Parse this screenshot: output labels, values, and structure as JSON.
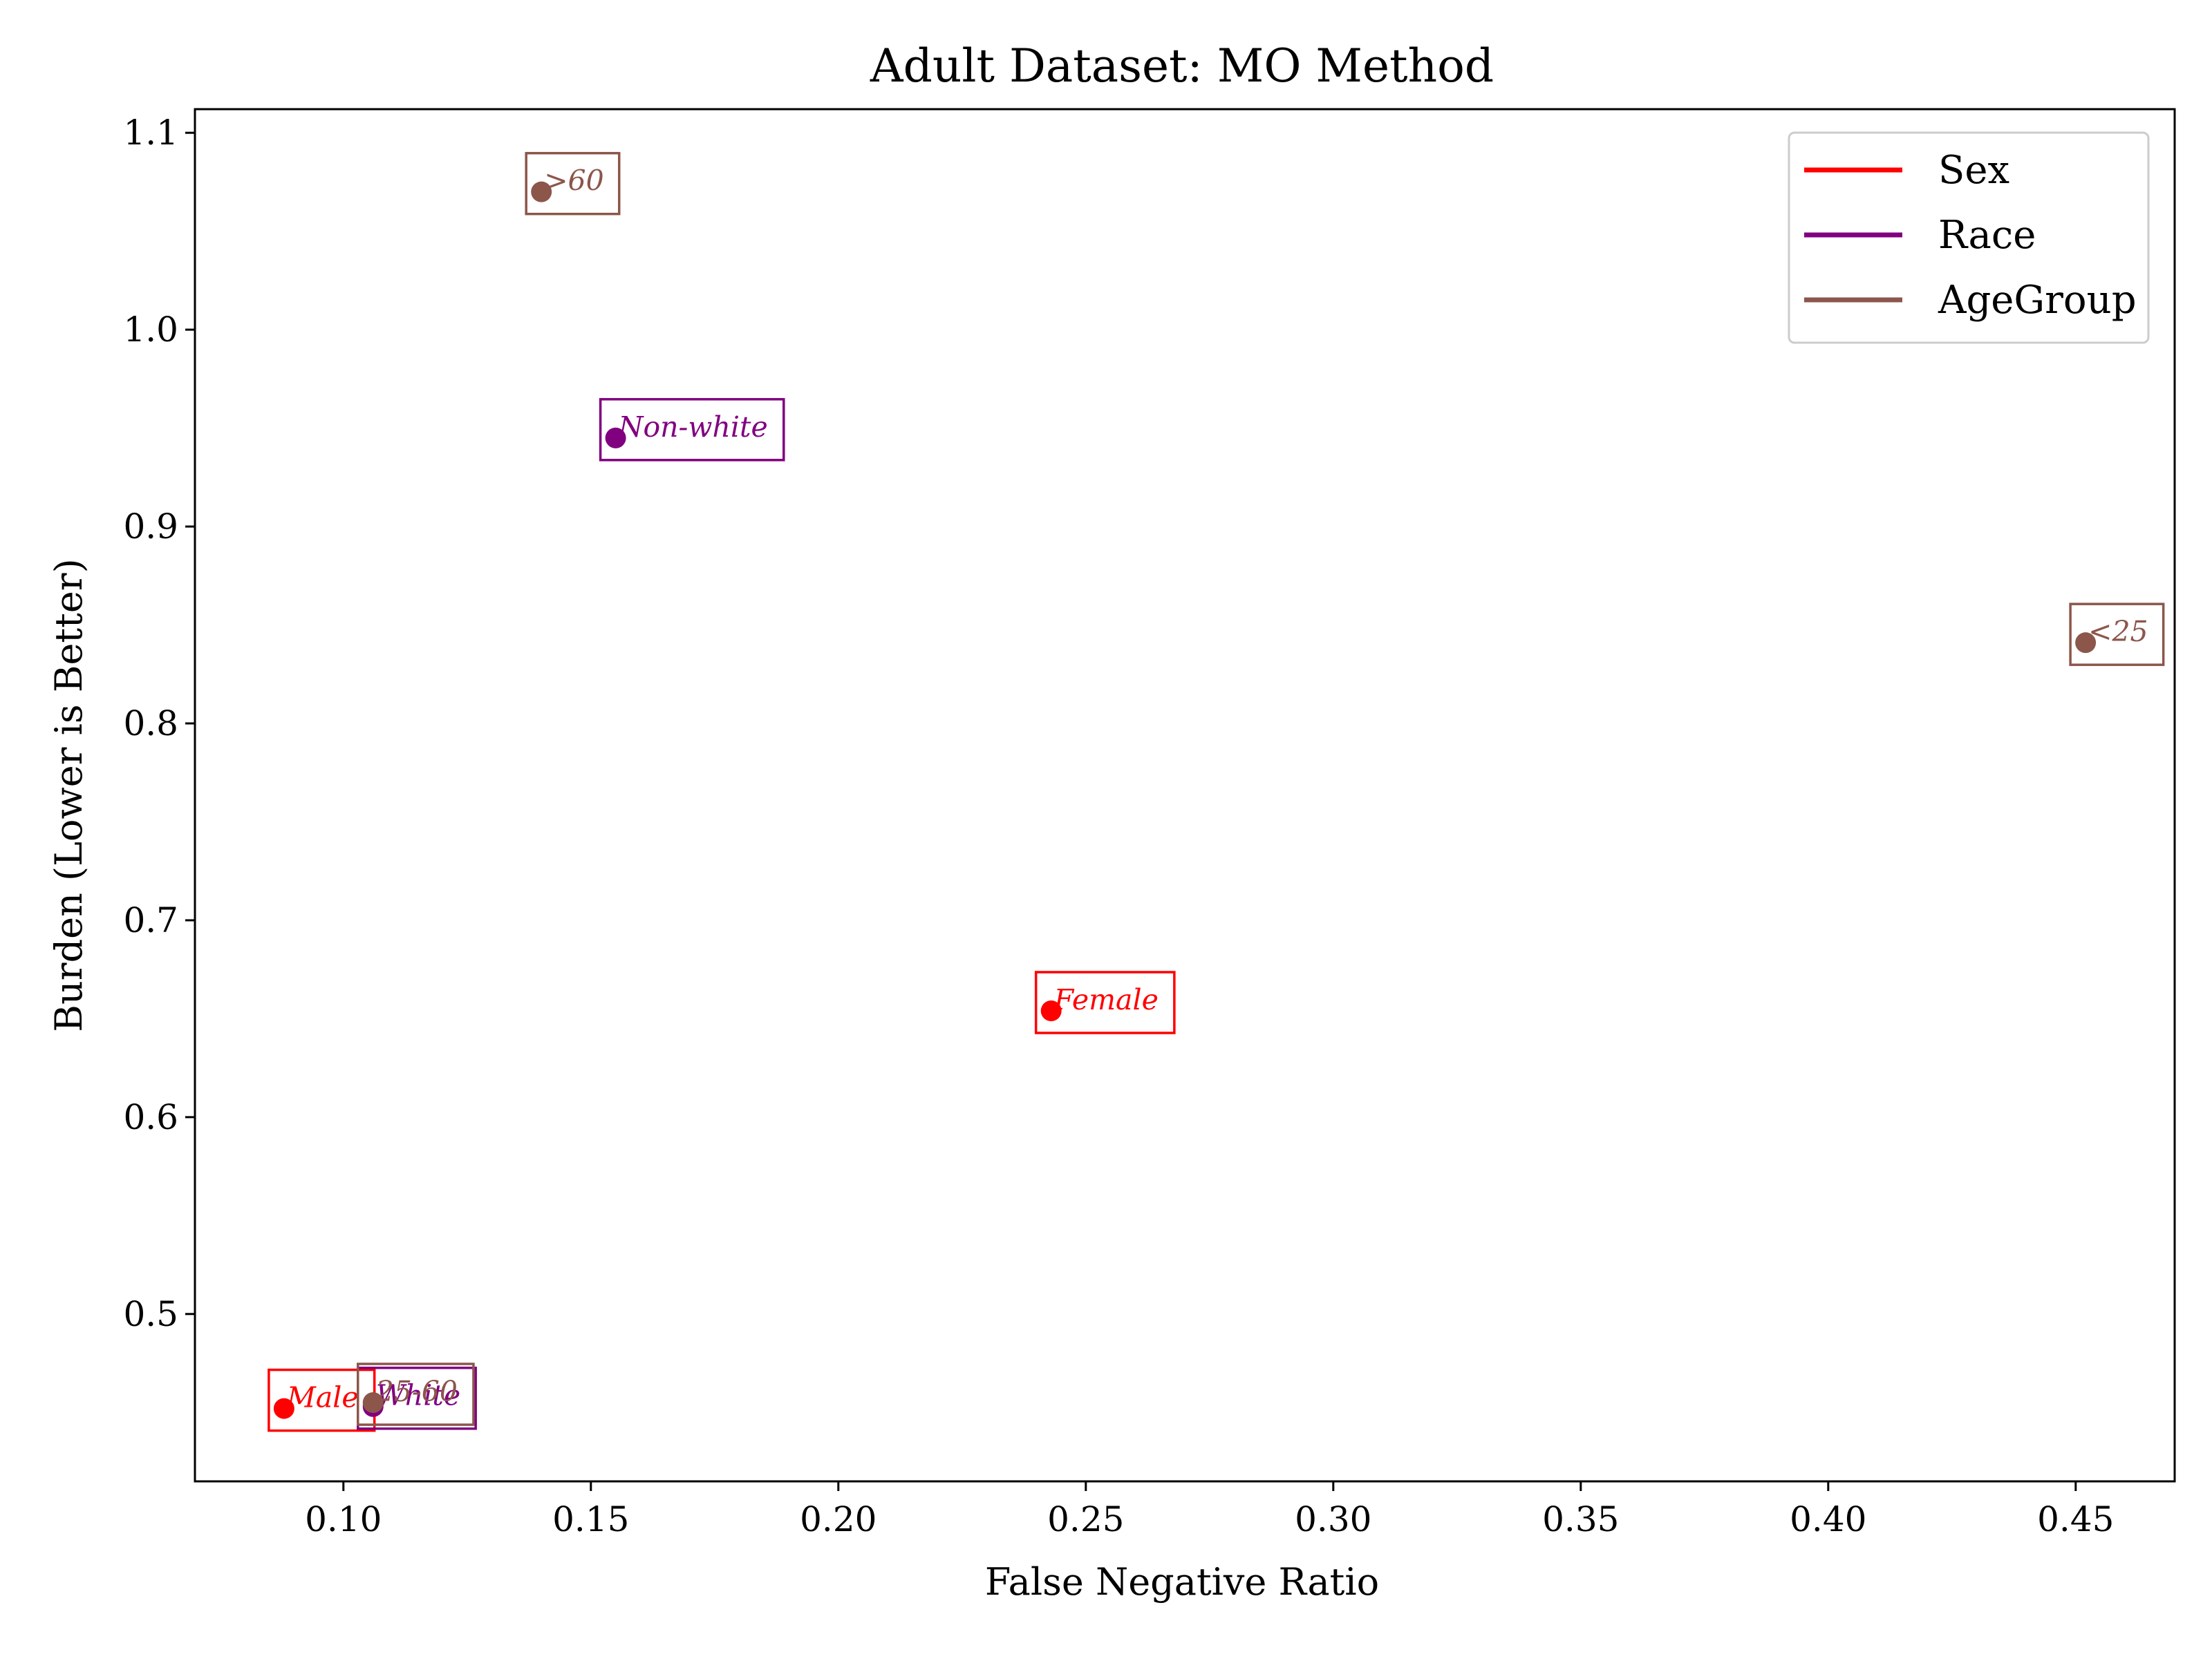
{
  "chart_data": {
    "type": "scatter",
    "title": "Adult Dataset: MO Method",
    "xlabel": "False Negative Ratio",
    "ylabel": "Burden (Lower is Better)",
    "xlim": [
      0.07,
      0.47
    ],
    "ylim": [
      0.415,
      1.112
    ],
    "xticks": [
      "0.10",
      "0.15",
      "0.20",
      "0.25",
      "0.30",
      "0.35",
      "0.40",
      "0.45"
    ],
    "yticks": [
      "0.5",
      "0.6",
      "0.7",
      "0.8",
      "0.9",
      "1.0",
      "1.1"
    ],
    "grid": false,
    "legend_position": "top-right",
    "series": [
      {
        "name": "Sex",
        "color": "#ff0000",
        "points": [
          {
            "label": "Male",
            "x": 0.088,
            "y": 0.452
          },
          {
            "label": "Female",
            "x": 0.243,
            "y": 0.654
          }
        ]
      },
      {
        "name": "Race",
        "color": "#800080",
        "points": [
          {
            "label": "White",
            "x": 0.106,
            "y": 0.453
          },
          {
            "label": "Non-white",
            "x": 0.155,
            "y": 0.945
          }
        ]
      },
      {
        "name": "AgeGroup",
        "color": "#8c564b",
        "points": [
          {
            "label": "25-60",
            "x": 0.106,
            "y": 0.455
          },
          {
            "label": ">60",
            "x": 0.14,
            "y": 1.07
          },
          {
            "label": "<25",
            "x": 0.452,
            "y": 0.841
          }
        ]
      }
    ]
  }
}
